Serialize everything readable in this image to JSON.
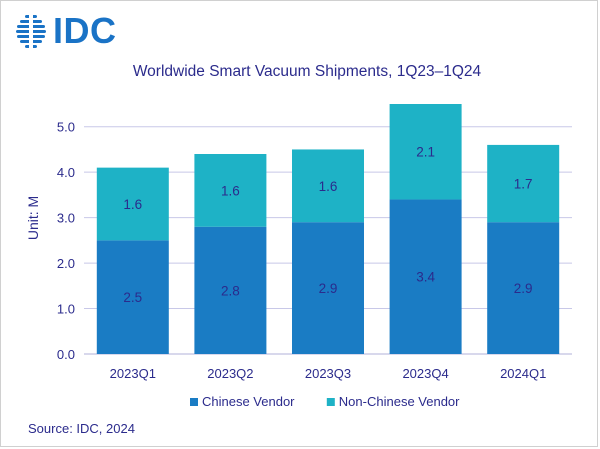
{
  "logo": {
    "text": "IDC"
  },
  "source": "Source: IDC, 2024",
  "colors": {
    "chinese": "#1a7cc4",
    "non_chinese": "#1eb2c6",
    "text": "#2b2b8c",
    "grid": "#c8c8e8"
  },
  "chart_data": {
    "type": "bar",
    "stacked": true,
    "title": "Worldwide Smart Vacuum Shipments, 1Q23–1Q24",
    "ylabel": "Unit: M",
    "xlabel": "",
    "categories": [
      "2023Q1",
      "2023Q2",
      "2023Q3",
      "2023Q4",
      "2024Q1"
    ],
    "series": [
      {
        "name": "Chinese Vendor",
        "values": [
          2.5,
          2.8,
          2.9,
          3.4,
          2.9
        ]
      },
      {
        "name": "Non-Chinese Vendor",
        "values": [
          1.6,
          1.6,
          1.6,
          2.1,
          1.7
        ]
      }
    ],
    "ylim": [
      0,
      5.5
    ],
    "yticks": [
      "0.0",
      "1.0",
      "2.0",
      "3.0",
      "4.0",
      "5.0"
    ],
    "grid": true,
    "legend": "bottom"
  }
}
